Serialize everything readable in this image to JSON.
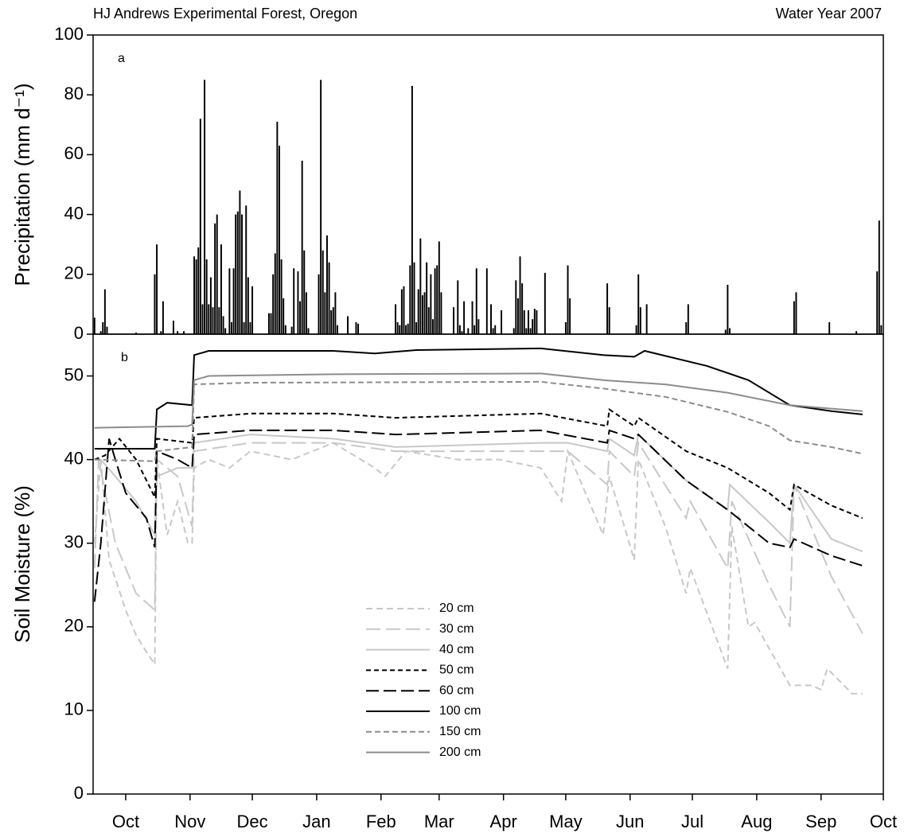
{
  "chart_data": [
    {
      "type": "bar",
      "title": "HJ Andrews Experimental Forest, Oregon",
      "subtitle": "Water Year 2007",
      "annotation": "a",
      "ylabel": "Precipitation (mm d⁻¹)",
      "color": "#000000",
      "xlim": [
        -15.7,
        365
      ],
      "ylim": [
        0,
        100
      ],
      "yticks": [
        0,
        20,
        40,
        60,
        80,
        100
      ],
      "x": [
        -15,
        -12,
        -11,
        -10,
        -9,
        5,
        14,
        15,
        17,
        18,
        23,
        25,
        28,
        33,
        34,
        35,
        36,
        37,
        38,
        39,
        40,
        41,
        42,
        43,
        44,
        45,
        46,
        47,
        48,
        50,
        51,
        52,
        53,
        54,
        55,
        56,
        57,
        58,
        59,
        60,
        61,
        69,
        70,
        71,
        72,
        73,
        74,
        75,
        76,
        77,
        80,
        81,
        83,
        84,
        85,
        86,
        87,
        88,
        93,
        94,
        95,
        96,
        97,
        98,
        99,
        100,
        101,
        102,
        107,
        111,
        112,
        130,
        131,
        132,
        133,
        134,
        135,
        136,
        137,
        138,
        139,
        140,
        141,
        142,
        143,
        144,
        145,
        146,
        147,
        148,
        149,
        150,
        151,
        152,
        158,
        160,
        161,
        162,
        163,
        165,
        167,
        168,
        169,
        170,
        174,
        176,
        177,
        178,
        181,
        187,
        188,
        189,
        190,
        191,
        192,
        193,
        194,
        195,
        196,
        197,
        198,
        202,
        212,
        213,
        214,
        232,
        233,
        246,
        247,
        248,
        251,
        270,
        271,
        289,
        290,
        291,
        322,
        323,
        339,
        352,
        362,
        363,
        364
      ],
      "values": [
        5.5,
        1,
        4,
        15,
        2.5,
        0.5,
        20,
        30,
        1,
        11,
        4.5,
        1,
        1,
        26,
        25,
        29,
        72,
        10,
        85,
        25,
        10,
        19,
        9,
        37,
        40,
        9,
        30,
        6,
        2,
        22,
        4,
        22,
        40,
        41,
        48,
        40,
        4,
        43,
        19,
        4,
        16,
        7,
        7,
        20,
        27,
        71,
        63,
        25,
        12,
        3,
        2.5,
        22,
        21,
        11,
        58,
        28,
        14,
        2,
        20,
        85,
        28,
        14,
        33,
        24,
        8,
        9,
        14,
        3,
        6,
        4,
        3.5,
        10,
        4,
        3,
        15,
        16,
        3,
        3.5,
        23,
        83,
        24,
        4,
        15,
        32,
        13,
        14,
        24,
        9,
        20,
        5,
        22,
        23,
        31,
        14,
        9,
        18,
        3,
        1,
        11,
        2,
        11,
        3,
        22,
        5,
        22,
        10,
        2,
        3,
        8,
        2,
        18,
        12,
        26,
        17,
        8,
        2,
        8,
        2,
        5,
        8.5,
        8,
        20.5,
        4,
        23,
        12,
        17,
        9,
        3,
        20,
        9,
        10,
        4,
        10,
        1.5,
        16.5,
        2,
        11,
        14,
        4,
        1,
        21,
        38,
        3
      ]
    },
    {
      "type": "line",
      "annotation": "b",
      "ylabel": "Soil Moisture (%)",
      "xlim": [
        -15.7,
        365
      ],
      "ylim": [
        0,
        55
      ],
      "yticks": [
        0,
        10,
        20,
        30,
        40,
        50
      ],
      "xticks": [
        {
          "value": 0,
          "label": "Oct"
        },
        {
          "value": 31,
          "label": "Nov"
        },
        {
          "value": 61,
          "label": "Dec"
        },
        {
          "value": 92,
          "label": "Jan"
        },
        {
          "value": 123,
          "label": "Feb"
        },
        {
          "value": 151,
          "label": "Mar"
        },
        {
          "value": 182,
          "label": "Apr"
        },
        {
          "value": 212,
          "label": "May"
        },
        {
          "value": 243,
          "label": "Jun"
        },
        {
          "value": 273,
          "label": "Jul"
        },
        {
          "value": 304,
          "label": "Aug"
        },
        {
          "value": 335,
          "label": "Sep"
        },
        {
          "value": 365,
          "label": "Oct"
        }
      ],
      "series": [
        {
          "name": "20 cm",
          "color": "#c8c8c8",
          "dash": "8,5",
          "x": [
            -15,
            -12,
            -8,
            0,
            5,
            10,
            14,
            15,
            20,
            25,
            30,
            32,
            33,
            40,
            50,
            60,
            80,
            100,
            120,
            125,
            135,
            160,
            180,
            200,
            210,
            213,
            230,
            233,
            245,
            247,
            260,
            270,
            272,
            290,
            292,
            300,
            303,
            320,
            330,
            335,
            338,
            350,
            355
          ],
          "values": [
            30,
            40,
            28,
            22,
            19,
            17,
            15.5,
            40,
            31,
            35,
            30,
            30,
            39,
            40,
            39,
            41,
            40,
            42,
            39,
            38,
            41,
            40,
            40,
            39,
            35,
            41,
            31,
            38,
            28,
            40,
            32,
            24,
            27,
            15,
            32,
            20,
            20.5,
            13,
            13,
            12.5,
            15,
            12,
            12
          ]
        },
        {
          "name": "30 cm",
          "color": "#c8c8c8",
          "dash": "18,7",
          "x": [
            -15,
            -13,
            -5,
            5,
            14,
            15,
            25,
            32,
            33,
            60,
            100,
            130,
            200,
            213,
            232,
            233,
            245,
            247,
            270,
            272,
            290,
            292,
            310,
            320,
            322,
            340,
            355
          ],
          "values": [
            27,
            40,
            30,
            24,
            22,
            40,
            38,
            32,
            41,
            42,
            42,
            41,
            41,
            41,
            37,
            41,
            38,
            42,
            33,
            35,
            27,
            35,
            25,
            20,
            37,
            26,
            19.2
          ]
        },
        {
          "name": "40 cm",
          "color": "#c8c8c8",
          "dash": "none",
          "x": [
            -15,
            -12,
            -5,
            5,
            14,
            15,
            25,
            32,
            33,
            60,
            100,
            130,
            200,
            213,
            232,
            233,
            245,
            247,
            270,
            290,
            291,
            310,
            320,
            322,
            340,
            355
          ],
          "values": [
            40,
            40,
            38,
            35,
            31,
            38,
            39,
            39,
            42,
            43,
            42.5,
            41.5,
            42,
            42,
            41,
            42.5,
            40.5,
            43,
            37.5,
            34,
            37,
            32.5,
            30,
            37,
            30.5,
            29
          ]
        },
        {
          "name": "50 cm",
          "color": "#000000",
          "dash": "6,4",
          "x": [
            -15,
            -10,
            -3,
            5,
            14,
            15,
            32,
            33,
            60,
            100,
            130,
            200,
            232,
            233,
            245,
            247,
            270,
            290,
            310,
            320,
            322,
            340,
            355
          ],
          "values": [
            40,
            40.5,
            42.5,
            40,
            35.5,
            42.5,
            42,
            45,
            45.5,
            45.5,
            45,
            45.5,
            44,
            46,
            44,
            45,
            41,
            39,
            36,
            34,
            37,
            34.5,
            33
          ]
        },
        {
          "name": "60 cm",
          "color": "#000000",
          "dash": "16,6",
          "x": [
            -15,
            -12,
            -8,
            -5,
            0,
            10,
            14,
            15,
            25,
            32,
            33,
            60,
            100,
            130,
            200,
            232,
            233,
            245,
            247,
            270,
            290,
            310,
            320,
            322,
            340,
            355
          ],
          "values": [
            23,
            30,
            42.5,
            40,
            36,
            33,
            29.5,
            41,
            40,
            39,
            43,
            43.5,
            43.5,
            43,
            43.5,
            42,
            43.5,
            42.5,
            43,
            37.5,
            34,
            30,
            29.5,
            30.5,
            28.5,
            27.3
          ]
        },
        {
          "name": "100 cm",
          "color": "#000000",
          "dash": "none",
          "x": [
            -15,
            -9,
            5,
            14,
            15,
            20,
            32,
            33,
            40,
            100,
            120,
            140,
            200,
            230,
            245,
            250,
            280,
            300,
            320,
            340,
            355
          ],
          "values": [
            41.3,
            41.3,
            41.3,
            41.3,
            46,
            46.8,
            46.5,
            52.5,
            53,
            53,
            52.7,
            53.1,
            53.3,
            52.5,
            52.3,
            53,
            51.2,
            49.5,
            46.5,
            45.8,
            45.4
          ]
        },
        {
          "name": "150 cm",
          "color": "#8c8c8c",
          "dash": "7,4",
          "x": [
            -15,
            14,
            15,
            32,
            33,
            60,
            200,
            230,
            260,
            290,
            310,
            320,
            340,
            355
          ],
          "values": [
            40,
            39.8,
            41,
            41.5,
            49,
            49.2,
            49.3,
            48.5,
            47.5,
            45.7,
            44,
            42.3,
            41.5,
            40.7
          ]
        },
        {
          "name": "200 cm",
          "color": "#8c8c8c",
          "dash": "none",
          "x": [
            -15,
            30,
            32,
            33,
            40,
            100,
            200,
            230,
            260,
            290,
            320,
            355
          ],
          "values": [
            43.8,
            44,
            44.2,
            49.5,
            50,
            50.2,
            50.3,
            49.5,
            49,
            48,
            46.5,
            45.8
          ]
        }
      ]
    }
  ]
}
